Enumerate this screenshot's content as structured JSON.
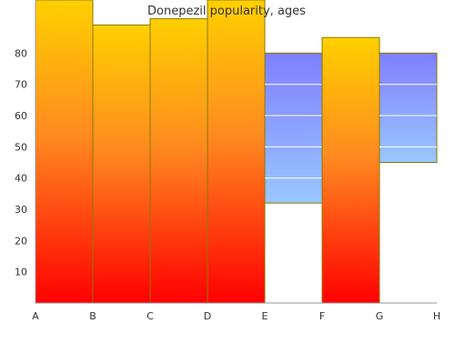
{
  "chart_data": {
    "type": "area",
    "title": "Donepezil popularity, ages",
    "categories": [
      "A",
      "B",
      "C",
      "D",
      "E",
      "F",
      "G",
      "H"
    ],
    "y_ticks": [
      10,
      20,
      30,
      40,
      50,
      60,
      70,
      80
    ],
    "ylim": [
      0,
      97
    ],
    "grid": false,
    "segments": [
      {
        "from": "A",
        "to": "B",
        "low": 0,
        "high": 97,
        "fill": "warm"
      },
      {
        "from": "B",
        "to": "C",
        "low": 0,
        "high": 89,
        "fill": "warm"
      },
      {
        "from": "C",
        "to": "D",
        "low": 0,
        "high": 91,
        "fill": "warm"
      },
      {
        "from": "D",
        "to": "E",
        "low": 0,
        "high": 97,
        "fill": "warm"
      },
      {
        "from": "E",
        "to": "F",
        "low": 32,
        "high": 80,
        "fill": "cool"
      },
      {
        "from": "F",
        "to": "G",
        "low": 0,
        "high": 85,
        "fill": "warm"
      },
      {
        "from": "G",
        "to": "H",
        "low": 45,
        "high": 80,
        "fill": "cool"
      }
    ],
    "colors": {
      "warm_top": "#ffd000",
      "warm_mid": "#ff8a20",
      "warm_bottom": "#ff0000",
      "cool_top": "#7f7fff",
      "cool_bottom": "#99c7ff",
      "outline": "#8a7a00",
      "axis": "#999999"
    }
  }
}
